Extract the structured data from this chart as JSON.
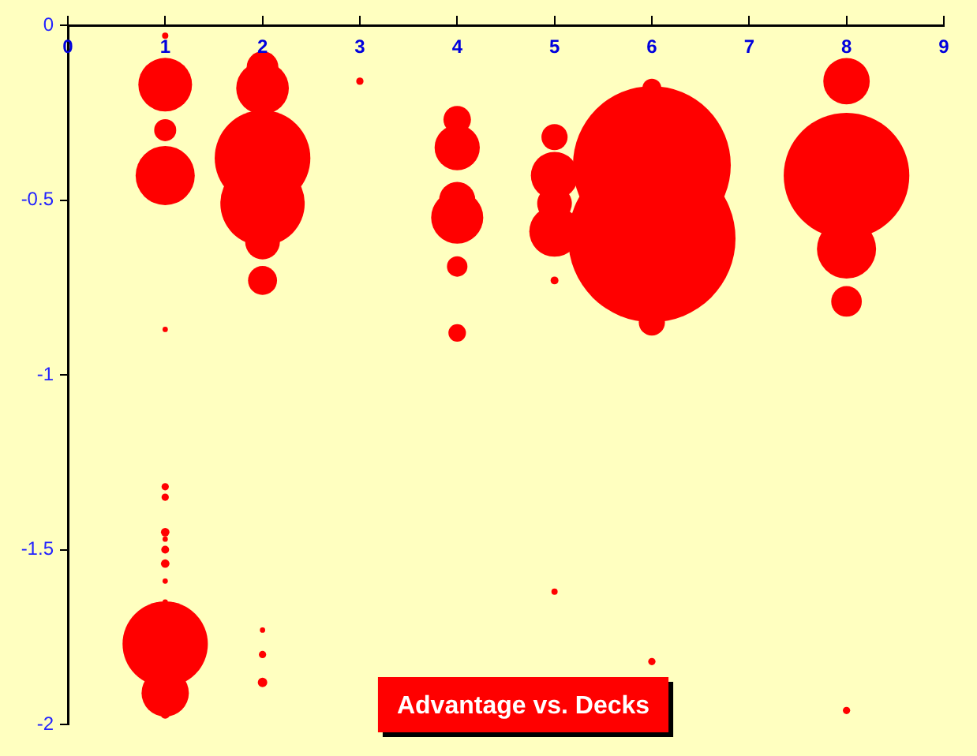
{
  "chart_data": {
    "type": "bubble",
    "title": "Advantage vs. Decks",
    "color": "#ff0000",
    "x": [
      1,
      1,
      1,
      1,
      1,
      1,
      1,
      1,
      1,
      1,
      1,
      1,
      1,
      1,
      1,
      1,
      2,
      2,
      2,
      2,
      2,
      2,
      2,
      2,
      2,
      3,
      4,
      4,
      4,
      4,
      4,
      4,
      5,
      5,
      5,
      5,
      5,
      5,
      6,
      6,
      6,
      6,
      6,
      8,
      8,
      8,
      8,
      8
    ],
    "values": [
      -0.03,
      -0.17,
      -0.3,
      -0.43,
      -0.87,
      -1.32,
      -1.35,
      -1.45,
      -1.47,
      -1.5,
      -1.54,
      -1.59,
      -1.65,
      -1.77,
      -1.91,
      -1.97,
      -0.12,
      -0.18,
      -0.38,
      -0.51,
      -0.62,
      -0.73,
      -1.73,
      -1.8,
      -1.88,
      -0.16,
      -0.27,
      -0.35,
      -0.5,
      -0.55,
      -0.69,
      -0.88,
      -0.32,
      -0.43,
      -0.51,
      -0.59,
      -0.73,
      -1.62,
      -0.18,
      -0.4,
      -0.61,
      -0.85,
      -1.82,
      -0.16,
      -0.43,
      -0.64,
      -0.79,
      -1.96
    ],
    "sizes": [
      0.0014,
      0.103,
      0.0174,
      0.125,
      0.001,
      0.0019,
      0.0019,
      0.0026,
      0.001,
      0.0022,
      0.0026,
      0.001,
      0.001,
      0.26,
      0.08,
      0.0032,
      0.036,
      0.099,
      0.327,
      0.254,
      0.043,
      0.03,
      0.001,
      0.0019,
      0.0032,
      0.0019,
      0.027,
      0.073,
      0.047,
      0.097,
      0.015,
      0.011,
      0.0245,
      0.08,
      0.043,
      0.091,
      0.0022,
      0.0014,
      0.0128,
      0.89,
      1,
      0.0245,
      0.0019,
      0.077,
      0.564,
      0.125,
      0.0335,
      0.0019
    ],
    "xlim": [
      0,
      9
    ],
    "xticks": [
      0,
      1,
      2,
      3,
      4,
      5,
      6,
      7,
      8,
      9
    ],
    "ylim": [
      -2,
      0
    ],
    "yticks": [
      0,
      -0.5,
      -1,
      -1.5,
      -2
    ],
    "grid": false,
    "legend": false
  }
}
